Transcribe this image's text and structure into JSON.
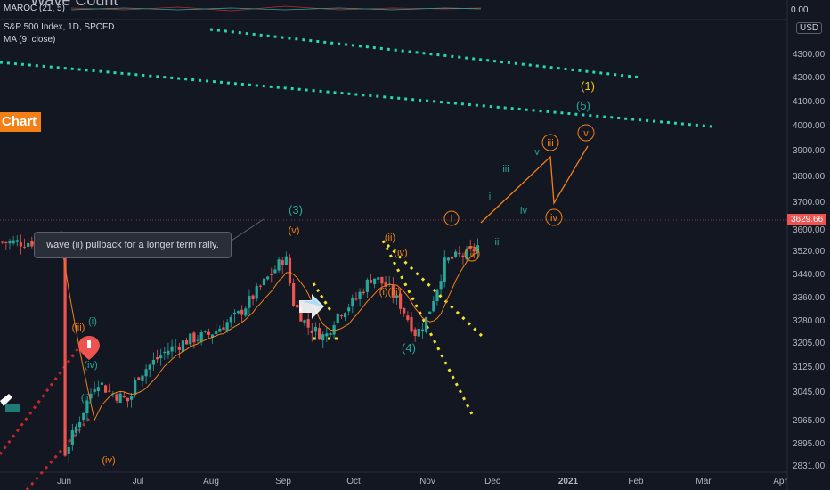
{
  "header": {
    "ghost_title": "Wave Count",
    "indicator_maroc": "MAROC (21, 5)",
    "symbol": "S&P 500 Index, 1D, SPCFD",
    "indicator_ma": "MA (9, close)",
    "top_value": "0.00"
  },
  "banner": {
    "text": "Chart"
  },
  "callout": {
    "text": "wave (ii) pullback for a longer term rally."
  },
  "price_scale": {
    "currency": "USD",
    "current_price": "3629.66",
    "labels": [
      "4300.00",
      "4200.00",
      "4100.00",
      "4000.00",
      "3900.00",
      "3800.00",
      "3700.00",
      "3600.00",
      "3520.00",
      "3440.00",
      "3360.00",
      "3280.00",
      "3205.00",
      "3125.00",
      "3045.00",
      "2965.00",
      "2895.00",
      "2831.00"
    ]
  },
  "time_axis": {
    "labels": [
      "Jun",
      "Jul",
      "Aug",
      "Sep",
      "Oct",
      "Nov",
      "Dec",
      "2021",
      "Feb",
      "Mar",
      "Apr"
    ]
  },
  "wave_labels": [
    {
      "t": "(iii)",
      "c": "#f57f17"
    },
    {
      "t": "(i)",
      "c": "#26a69a"
    },
    {
      "t": "(iv)",
      "c": "#26a69a"
    },
    {
      "t": "(ii)",
      "c": "#26a69a"
    },
    {
      "t": "(iv)",
      "c": "#f57f17"
    },
    {
      "t": "(3)",
      "c": "#26a69a"
    },
    {
      "t": "(v)",
      "c": "#f57f17"
    },
    {
      "t": "(ii)",
      "c": "#f57f17"
    },
    {
      "t": "(iv)",
      "c": "#f57f17"
    },
    {
      "t": "(i)(iii)",
      "c": "#f57f17"
    },
    {
      "t": "(4)",
      "c": "#26a69a"
    },
    {
      "t": "i",
      "c": "#f57f17"
    },
    {
      "t": "ii",
      "c": "#f57f17"
    },
    {
      "t": "ii",
      "c": "#26a69a"
    },
    {
      "t": "i",
      "c": "#26a69a"
    },
    {
      "t": "iii",
      "c": "#26a69a"
    },
    {
      "t": "iv",
      "c": "#26a69a"
    },
    {
      "t": "v",
      "c": "#26a69a"
    },
    {
      "t": "iii",
      "c": "#f57f17"
    },
    {
      "t": "iv",
      "c": "#f57f17"
    },
    {
      "t": "v",
      "c": "#f57f17"
    },
    {
      "t": "(1)",
      "c": "#f5c518"
    },
    {
      "t": "(5)",
      "c": "#26a69a"
    }
  ],
  "chart_data": {
    "type": "candlestick",
    "symbol": "S&P 500 Index",
    "interval": "1D",
    "x": [
      "Jun",
      "Jul",
      "Aug",
      "Sep",
      "Oct",
      "Nov",
      "Dec",
      "2021",
      "Feb",
      "Mar",
      "Apr"
    ],
    "ylim": [
      2831,
      4380
    ],
    "close_path": [
      [
        0,
        2870
      ],
      [
        0.25,
        3020
      ],
      [
        0.45,
        3140
      ],
      [
        0.6,
        3100
      ],
      [
        0.9,
        3060
      ],
      [
        1.0,
        3150
      ],
      [
        1.4,
        3240
      ],
      [
        1.7,
        3280
      ],
      [
        2.0,
        3300
      ],
      [
        2.4,
        3370
      ],
      [
        2.8,
        3500
      ],
      [
        3.05,
        3580
      ],
      [
        3.15,
        3420
      ],
      [
        3.35,
        3330
      ],
      [
        3.6,
        3290
      ],
      [
        3.75,
        3370
      ],
      [
        4.0,
        3420
      ],
      [
        4.25,
        3510
      ],
      [
        4.45,
        3470
      ],
      [
        4.65,
        3400
      ],
      [
        4.85,
        3300
      ],
      [
        5.0,
        3360
      ],
      [
        5.25,
        3560
      ],
      [
        5.45,
        3580
      ],
      [
        5.6,
        3590
      ],
      [
        5.75,
        3629.66
      ]
    ],
    "ma": {
      "name": "MA (9, close)"
    },
    "last_price": 3629.66
  },
  "colors": {
    "background": "#131722",
    "up": "#26a69a",
    "down": "#ef5350",
    "ma": "#f57f17",
    "trend_teal": "#26d9b0",
    "trend_yellow": "#f5e52a",
    "trend_red": "#c62828",
    "wave_orange": "#f57f17"
  }
}
